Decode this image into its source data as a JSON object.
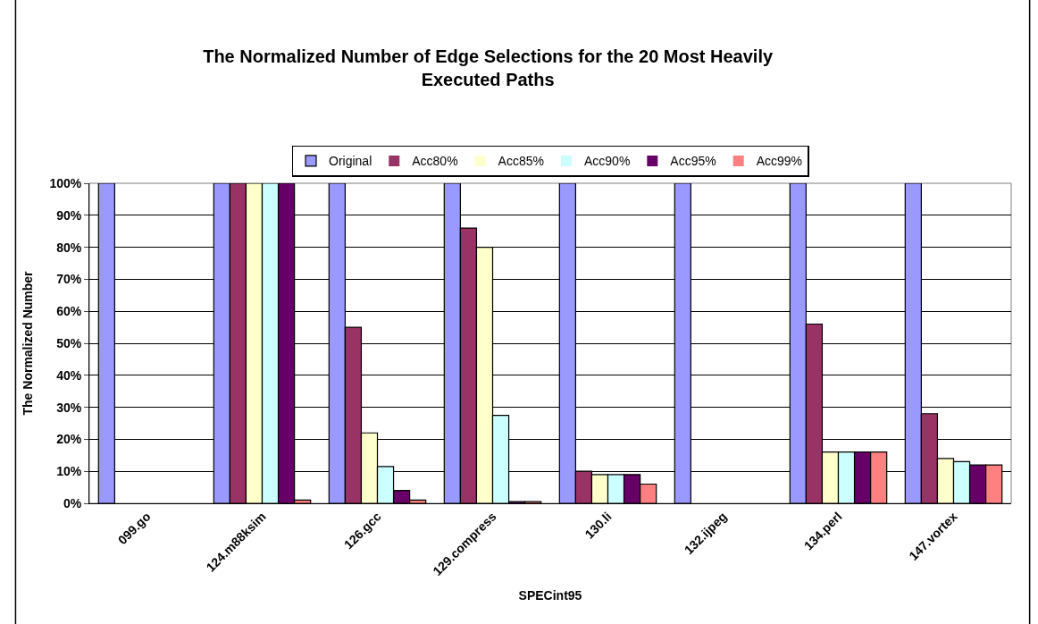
{
  "chart_data": {
    "type": "bar",
    "title": "The Normalized Number of Edge Selections for the 20 Most Heavily\nExecuted Paths",
    "xlabel": "SPECint95",
    "ylabel": "The Normalized Number",
    "categories": [
      "099.go",
      "124.m88ksim",
      "126.gcc",
      "129.compress",
      "130.li",
      "132.ijpeg",
      "134.perl",
      "147.vortex"
    ],
    "series": [
      {
        "name": "Original",
        "color": "#9999ff",
        "values": [
          100,
          100,
          100,
          100,
          100,
          100,
          100,
          100
        ]
      },
      {
        "name": "Acc80%",
        "color": "#993366",
        "values": [
          0,
          100,
          55,
          86,
          10,
          0,
          56,
          28
        ]
      },
      {
        "name": "Acc85%",
        "color": "#ffffcc",
        "values": [
          0,
          100,
          22,
          80,
          9,
          0,
          16,
          14
        ]
      },
      {
        "name": "Acc90%",
        "color": "#ccffff",
        "values": [
          0,
          100,
          11.5,
          27.5,
          9,
          0,
          16,
          13
        ]
      },
      {
        "name": "Acc95%",
        "color": "#660066",
        "values": [
          0,
          100,
          4,
          0.5,
          9,
          0,
          16,
          12
        ]
      },
      {
        "name": "Acc99%",
        "color": "#ff8080",
        "values": [
          0,
          1,
          1,
          0.5,
          6,
          0,
          16,
          12
        ]
      }
    ],
    "ylim": [
      0,
      100
    ],
    "yticks": [
      {
        "value": 0,
        "label": "0%"
      },
      {
        "value": 10,
        "label": "10%"
      },
      {
        "value": 20,
        "label": "20%"
      },
      {
        "value": 30,
        "label": "30%"
      },
      {
        "value": 40,
        "label": "40%"
      },
      {
        "value": 50,
        "label": "50%"
      },
      {
        "value": 60,
        "label": "60%"
      },
      {
        "value": 70,
        "label": "70%"
      },
      {
        "value": 80,
        "label": "80%"
      },
      {
        "value": 90,
        "label": "90%"
      },
      {
        "value": 100,
        "label": "100%"
      }
    ],
    "grid": "y",
    "legend": "top"
  }
}
